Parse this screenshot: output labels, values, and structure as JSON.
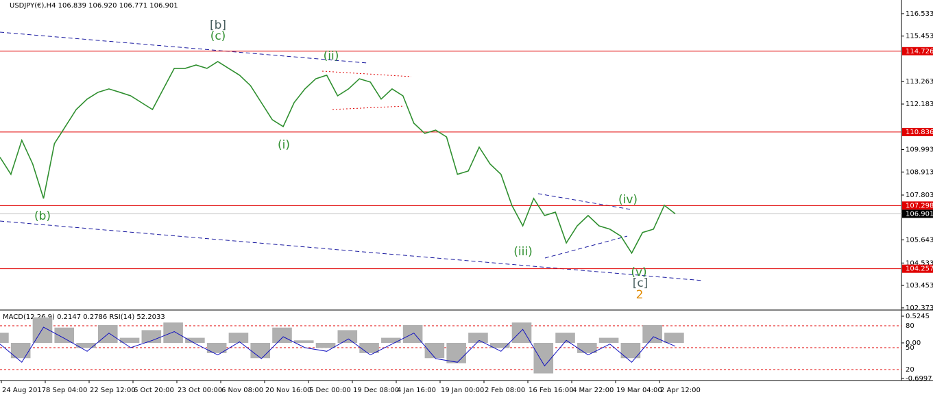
{
  "header": {
    "title": "USDJPY(€),H4  106.839 106.920 106.771 106.901"
  },
  "chart_data": [
    {
      "type": "line",
      "series": [
        {
          "color": "#2f8f2f",
          "values": [
            109.62,
            108.8,
            110.44,
            109.3,
            107.64,
            110.28,
            111.1,
            111.92,
            112.42,
            112.75,
            112.91,
            112.75,
            112.58,
            112.25,
            111.92,
            112.91,
            113.9,
            113.9,
            114.06,
            113.9,
            114.23,
            113.9,
            113.57,
            113.07,
            112.25,
            111.43,
            111.1,
            112.25,
            112.91,
            113.4,
            113.57,
            112.58,
            112.91,
            113.4,
            113.24,
            112.42,
            112.91,
            112.58,
            111.26,
            110.77,
            110.93,
            110.6,
            108.8,
            108.96,
            110.11,
            109.3,
            108.8,
            107.31,
            106.32,
            107.64,
            106.82,
            106.98,
            105.5,
            106.32,
            106.82,
            106.32,
            106.16,
            105.83,
            105.01,
            106.0,
            106.16,
            107.31,
            106.9
          ]
        }
      ],
      "ylim": [
        102.27,
        117.19
      ],
      "yticks": [
        116.533,
        115.453,
        113.263,
        112.183,
        109.993,
        108.913,
        107.803,
        105.643,
        104.533,
        103.453,
        102.373
      ],
      "levels": [
        {
          "value": 114.726,
          "color": "#e00000"
        },
        {
          "value": 110.836,
          "color": "#e00000"
        },
        {
          "value": 107.298,
          "color": "#e00000"
        },
        {
          "value": 104.257,
          "color": "#e00000"
        }
      ],
      "current_price": 106.901,
      "x_labels": [
        "24 Aug 2017",
        "8 Sep 04:00",
        "22 Sep 12:00",
        "6 Oct 20:00",
        "23 Oct 00:00",
        "6 Nov 08:00",
        "20 Nov 16:00",
        "5 Dec 00:00",
        "19 Dec 08:00",
        "4 Jan 16:00",
        "19 Jan 00:00",
        "2 Feb 08:00",
        "16 Feb 16:00",
        "4 Mar 22:00",
        "19 Mar 04:00",
        "2 Apr 12:00"
      ],
      "annotations": [
        {
          "text": "[b]",
          "color": "#4a6060"
        },
        {
          "text": "(c)",
          "color": "#2f8f2f"
        },
        {
          "text": "(ii)",
          "color": "#2f8f2f"
        },
        {
          "text": "(i)",
          "color": "#2f8f2f"
        },
        {
          "text": "(b)",
          "color": "#2f8f2f"
        },
        {
          "text": "(iii)",
          "color": "#2f8f2f"
        },
        {
          "text": "(iv)",
          "color": "#2f8f2f"
        },
        {
          "text": "(v)",
          "color": "#2f8f2f"
        },
        {
          "text": "[c]",
          "color": "#4a6060"
        },
        {
          "text": "2",
          "color": "#e08a00"
        }
      ]
    },
    {
      "type": "line",
      "title": "MACD(12,26,9) 0.2147 0.2786 RSI(14) 52.2033",
      "series": [
        {
          "color": "#b0b0b0",
          "axis": "y2",
          "values": [
            0.2,
            -0.3,
            0.5,
            0.3,
            -0.1,
            0.35,
            0.1,
            0.25,
            0.4,
            0.1,
            -0.2,
            0.2,
            -0.3,
            0.3,
            0.05,
            -0.1,
            0.25,
            -0.2,
            0.1,
            0.35,
            -0.3,
            -0.4,
            0.2,
            -0.1,
            0.4,
            -0.6,
            0.2,
            -0.2,
            0.1,
            -0.3,
            0.35,
            0.2
          ]
        },
        {
          "color": "#1010c0",
          "values": [
            55,
            30,
            78,
            62,
            45,
            70,
            50,
            60,
            72,
            55,
            40,
            58,
            35,
            65,
            50,
            45,
            62,
            40,
            55,
            70,
            35,
            30,
            60,
            45,
            75,
            25,
            60,
            40,
            55,
            30,
            65,
            52
          ]
        }
      ],
      "ylim": [
        5.9,
        99.7
      ],
      "yticks": [
        20,
        50,
        80
      ],
      "y2lim": [
        -0.7266,
        0.6187
      ],
      "y2ticks": [
        0.5245,
        {
          "value": 0,
          "label": "0.00"
        },
        -0.6997
      ]
    }
  ]
}
